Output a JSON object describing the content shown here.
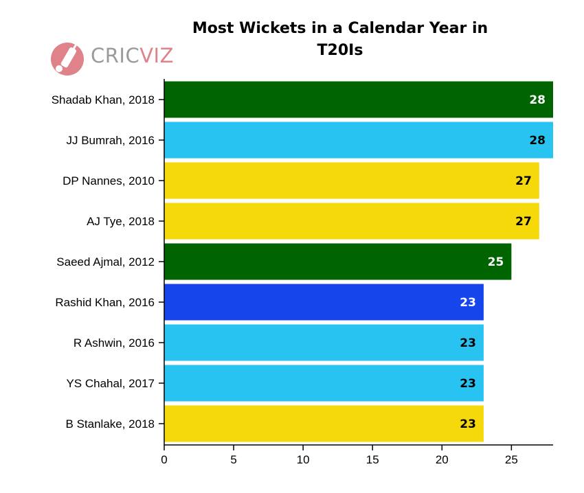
{
  "logo": {
    "text_a": "CRIC",
    "text_b": "VIZ",
    "icon": "cricket-bat-ball-icon",
    "color_a": "#9a9a9a",
    "color_b": "#e0828a"
  },
  "chart_data": {
    "type": "bar",
    "orientation": "horizontal",
    "title": "Most Wickets in a Calendar Year in T20Is",
    "title_lines": [
      "Most Wickets in a Calendar Year in",
      "T20Is"
    ],
    "xlabel": "",
    "ylabel": "",
    "xlim": [
      0,
      28
    ],
    "xticks": [
      0,
      5,
      10,
      15,
      20,
      25
    ],
    "grid": false,
    "legend": false,
    "categories": [
      "Shadab Khan, 2018",
      "JJ Bumrah, 2016",
      "DP Nannes, 2010",
      "AJ Tye, 2018",
      "Saeed Ajmal, 2012",
      "Rashid Khan, 2016",
      "R Ashwin, 2016",
      "YS Chahal, 2017",
      "B Stanlake, 2018"
    ],
    "values": [
      28,
      28,
      27,
      27,
      25,
      23,
      23,
      23,
      23
    ],
    "data_labels": [
      "28",
      "28",
      "27",
      "27",
      "25",
      "23",
      "23",
      "23",
      "23"
    ],
    "bar_colors": [
      "#006400",
      "#29c3f2",
      "#f5d90a",
      "#f5d90a",
      "#006400",
      "#1646eb",
      "#29c3f2",
      "#29c3f2",
      "#f5d90a"
    ],
    "label_colors": [
      "#ffffff",
      "#000000",
      "#000000",
      "#000000",
      "#ffffff",
      "#ffffff",
      "#000000",
      "#000000",
      "#000000"
    ]
  }
}
